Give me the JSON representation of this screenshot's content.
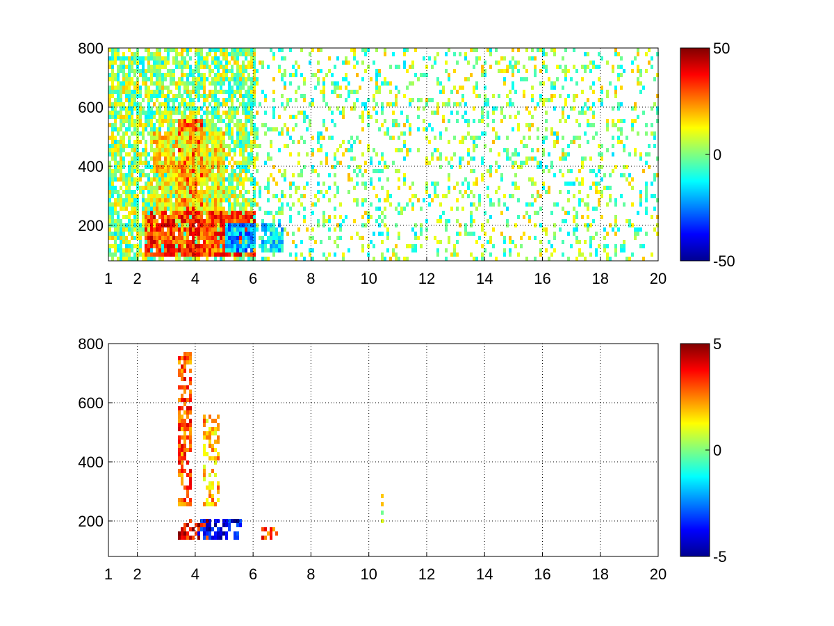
{
  "chart_data": [
    {
      "type": "heatmap",
      "title": "",
      "xlabel": "",
      "ylabel": "",
      "xlim": [
        1,
        20
      ],
      "ylim": [
        80,
        800
      ],
      "x_ticks": [
        1,
        2,
        4,
        6,
        8,
        10,
        12,
        14,
        16,
        18,
        20
      ],
      "y_ticks": [
        200,
        400,
        600,
        800
      ],
      "grid": true,
      "grid_style": "dotted",
      "colormap": "jet",
      "color_range": [
        -50,
        50
      ],
      "colorbar_ticks": [
        50,
        0,
        -50
      ],
      "background": "#ffffff",
      "features": [
        {
          "x_range": [
            2.2,
            6.0
          ],
          "y_range": [
            100,
            250
          ],
          "value": 32
        },
        {
          "x_range": [
            3.4,
            4.2
          ],
          "y_range": [
            250,
            560
          ],
          "value": 28
        },
        {
          "x_range": [
            2.4,
            5.0
          ],
          "y_range": [
            250,
            520
          ],
          "value": 14
        },
        {
          "x_range": [
            5.0,
            6.0
          ],
          "y_range": [
            120,
            220
          ],
          "value": -22
        },
        {
          "x_range": [
            6.2,
            7.0
          ],
          "y_range": [
            110,
            210
          ],
          "value": -15
        }
      ]
    },
    {
      "type": "heatmap",
      "title": "",
      "xlabel": "",
      "ylabel": "",
      "xlim": [
        1,
        20
      ],
      "ylim": [
        80,
        800
      ],
      "x_ticks": [
        1,
        2,
        4,
        6,
        8,
        10,
        12,
        14,
        16,
        18,
        20
      ],
      "y_ticks": [
        200,
        400,
        600,
        800
      ],
      "grid": true,
      "grid_style": "dotted",
      "colormap": "jet",
      "color_range": [
        -5,
        5
      ],
      "colorbar_ticks": [
        5,
        0,
        -5
      ],
      "background": "#ffffff",
      "features": [
        {
          "x_range": [
            3.4,
            4.6
          ],
          "y_range": [
            140,
            220
          ],
          "value": 4
        },
        {
          "x_range": [
            3.4,
            3.8
          ],
          "y_range": [
            250,
            780
          ],
          "value": 3
        },
        {
          "x_range": [
            4.2,
            4.8
          ],
          "y_range": [
            250,
            560
          ],
          "value": 2
        },
        {
          "x_range": [
            4.0,
            5.6
          ],
          "y_range": [
            140,
            220
          ],
          "value": -4
        },
        {
          "x_range": [
            6.2,
            6.8
          ],
          "y_range": [
            140,
            190
          ],
          "value": 3
        },
        {
          "x_range": [
            10.4,
            10.5
          ],
          "y_range": [
            180,
            300
          ],
          "value": 1
        }
      ]
    }
  ]
}
